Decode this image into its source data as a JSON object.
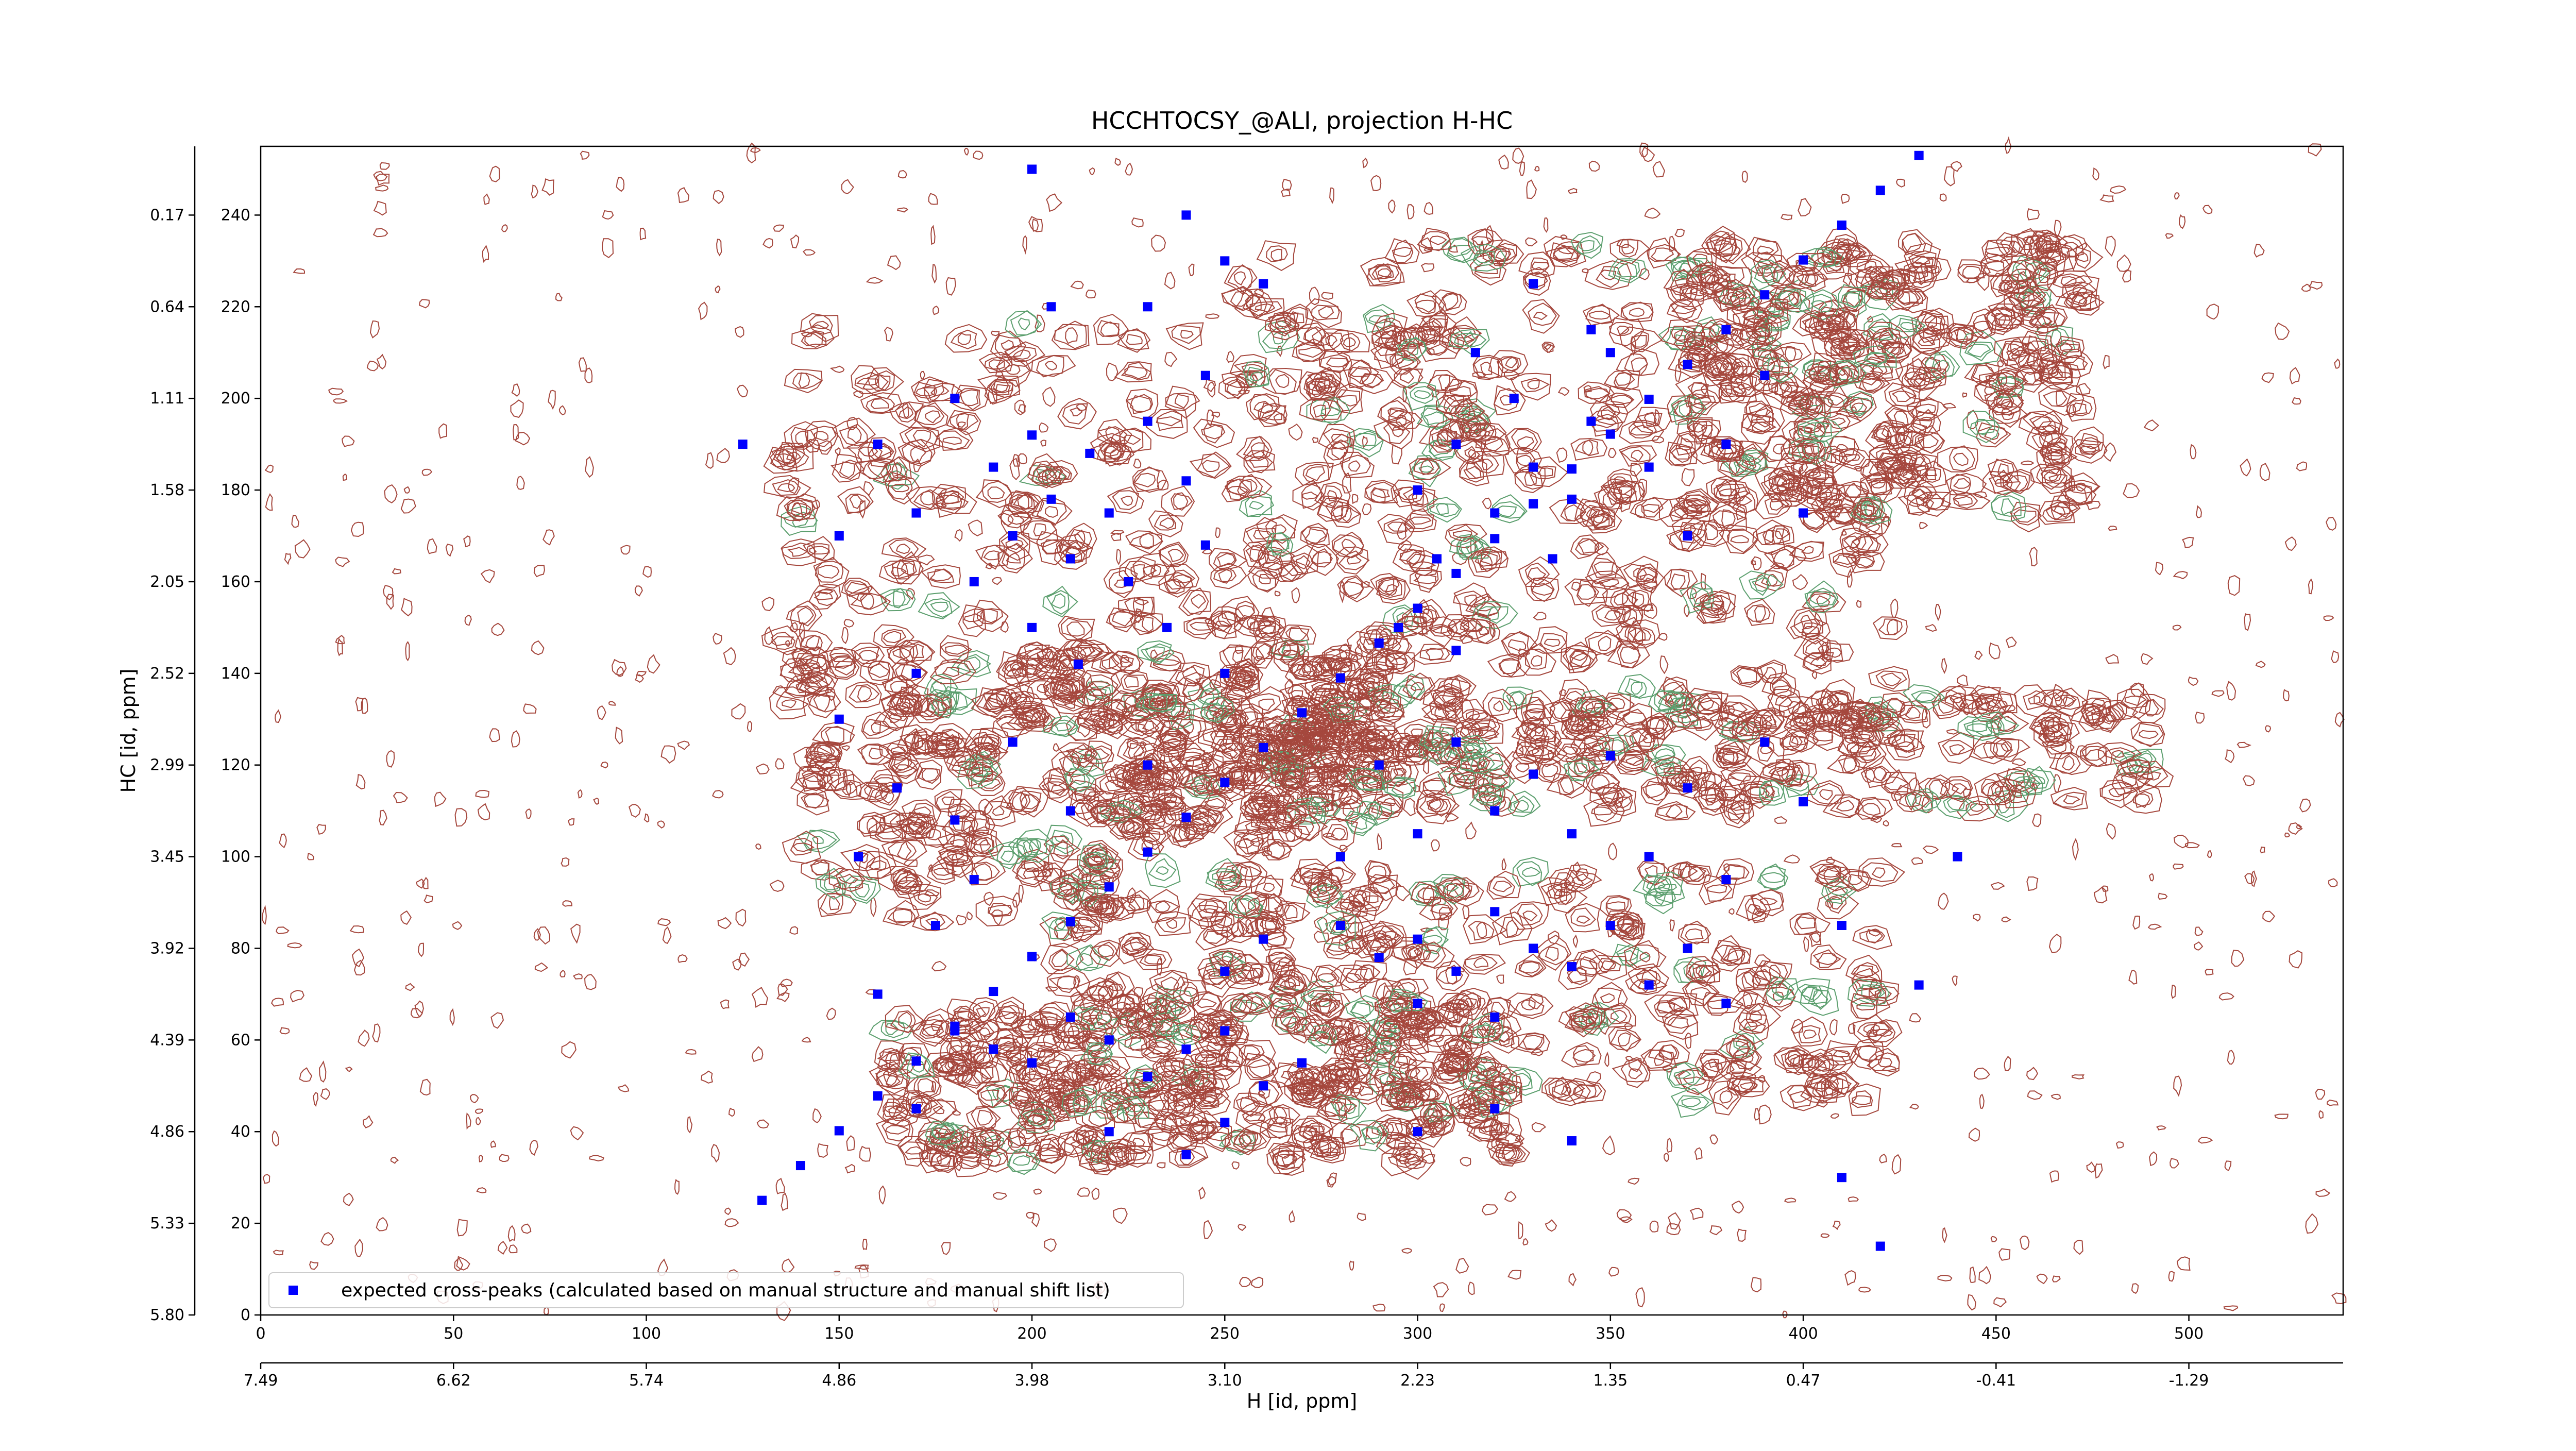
{
  "chart_data": {
    "type": "scatter",
    "title": "HCCHTOCSY_@ALI, projection H-HC",
    "x_label": "H [id, ppm]",
    "y_label": "HC [id, ppm]",
    "xlim": [
      0,
      540
    ],
    "ylim": [
      0,
      255
    ],
    "xticks": [
      0,
      50,
      100,
      150,
      200,
      250,
      300,
      350,
      400,
      450,
      500
    ],
    "yticks": [
      0,
      20,
      40,
      60,
      80,
      100,
      120,
      140,
      160,
      180,
      200,
      220,
      240
    ],
    "x2ticks": [
      {
        "value": 0,
        "label": "7.49"
      },
      {
        "value": 50,
        "label": "6.62"
      },
      {
        "value": 100,
        "label": "5.74"
      },
      {
        "value": 150,
        "label": "4.86"
      },
      {
        "value": 200,
        "label": "3.98"
      },
      {
        "value": 250,
        "label": "3.10"
      },
      {
        "value": 300,
        "label": "2.23"
      },
      {
        "value": 350,
        "label": "1.35"
      },
      {
        "value": 400,
        "label": "0.47"
      },
      {
        "value": 450,
        "label": "-0.41"
      },
      {
        "value": 500,
        "label": "-1.29"
      }
    ],
    "y2ticks": [
      {
        "value": 0,
        "label": "5.80"
      },
      {
        "value": 20,
        "label": "5.33"
      },
      {
        "value": 40,
        "label": "4.86"
      },
      {
        "value": 60,
        "label": "4.39"
      },
      {
        "value": 80,
        "label": "3.92"
      },
      {
        "value": 100,
        "label": "3.45"
      },
      {
        "value": 120,
        "label": "2.99"
      },
      {
        "value": 140,
        "label": "2.52"
      },
      {
        "value": 160,
        "label": "2.05"
      },
      {
        "value": 180,
        "label": "1.58"
      },
      {
        "value": 200,
        "label": "1.11"
      },
      {
        "value": 220,
        "label": "0.64"
      },
      {
        "value": 240,
        "label": "0.17"
      }
    ],
    "legend": "lower left",
    "series": [
      {
        "name": "expected cross-peaks (calculated based on manual structure and manual shift list)",
        "color": "#0000ff",
        "x": [
          130,
          140,
          150,
          160,
          170,
          180,
          190,
          200,
          210,
          220,
          230,
          240,
          250,
          260,
          270,
          280,
          290,
          300,
          310,
          320,
          330,
          340,
          350,
          360,
          370,
          380,
          390,
          400,
          410,
          420,
          430,
          190,
          195,
          200,
          205,
          210,
          215,
          220,
          185,
          200,
          212,
          225,
          230,
          240,
          245,
          180,
          170,
          160,
          150,
          235,
          250,
          300,
          310,
          320,
          330,
          340,
          345,
          335,
          325,
          315,
          305,
          295,
          310,
          350,
          360,
          370,
          380,
          390,
          400,
          330,
          345,
          280,
          290,
          300,
          310,
          320,
          330,
          340,
          350,
          360,
          370,
          380,
          300,
          320,
          260,
          250,
          180,
          190,
          200,
          210,
          220,
          230,
          240,
          250,
          260,
          270,
          170,
          160,
          220,
          240,
          250,
          290,
          310,
          330,
          350,
          370,
          390,
          400,
          320,
          340,
          360,
          380,
          300,
          280,
          230,
          210,
          195,
          180,
          230,
          240,
          200,
          205,
          260,
          420,
          410,
          440,
          170,
          150,
          165,
          155,
          185,
          175,
          125,
          300,
          320,
          340,
          410,
          430,
          250,
          245
        ],
        "values": [
          25,
          32.6,
          40.2,
          47.8,
          55.4,
          63,
          70.6,
          78.2,
          85.8,
          93.4,
          101,
          108.6,
          116.2,
          123.8,
          131.4,
          139,
          146.6,
          154.2,
          161.8,
          169.4,
          177,
          184.6,
          192.2,
          199.8,
          207.4,
          215,
          222.6,
          230.2,
          237.8,
          245.4,
          253,
          185,
          170,
          192,
          178,
          165,
          188,
          175,
          160,
          150,
          142,
          160,
          195,
          182,
          168,
          200,
          175,
          190,
          170,
          150,
          140,
          180,
          190,
          175,
          185,
          178,
          195,
          165,
          200,
          210,
          165,
          150,
          145,
          210,
          185,
          170,
          190,
          205,
          175,
          225,
          215,
          85,
          78,
          82,
          75,
          88,
          80,
          76,
          85,
          72,
          80,
          68,
          68,
          65,
          82,
          75,
          62,
          58,
          55,
          65,
          60,
          52,
          58,
          62,
          50,
          55,
          45,
          70,
          40,
          35,
          42,
          120,
          125,
          118,
          122,
          115,
          125,
          112,
          110,
          105,
          100,
          95,
          105,
          100,
          120,
          110,
          125,
          108,
          220,
          240,
          250,
          220,
          225,
          15,
          30,
          100,
          140,
          130,
          115,
          100,
          95,
          85,
          190,
          40,
          45,
          38,
          85,
          72,
          230,
          205
        ]
      }
    ]
  }
}
